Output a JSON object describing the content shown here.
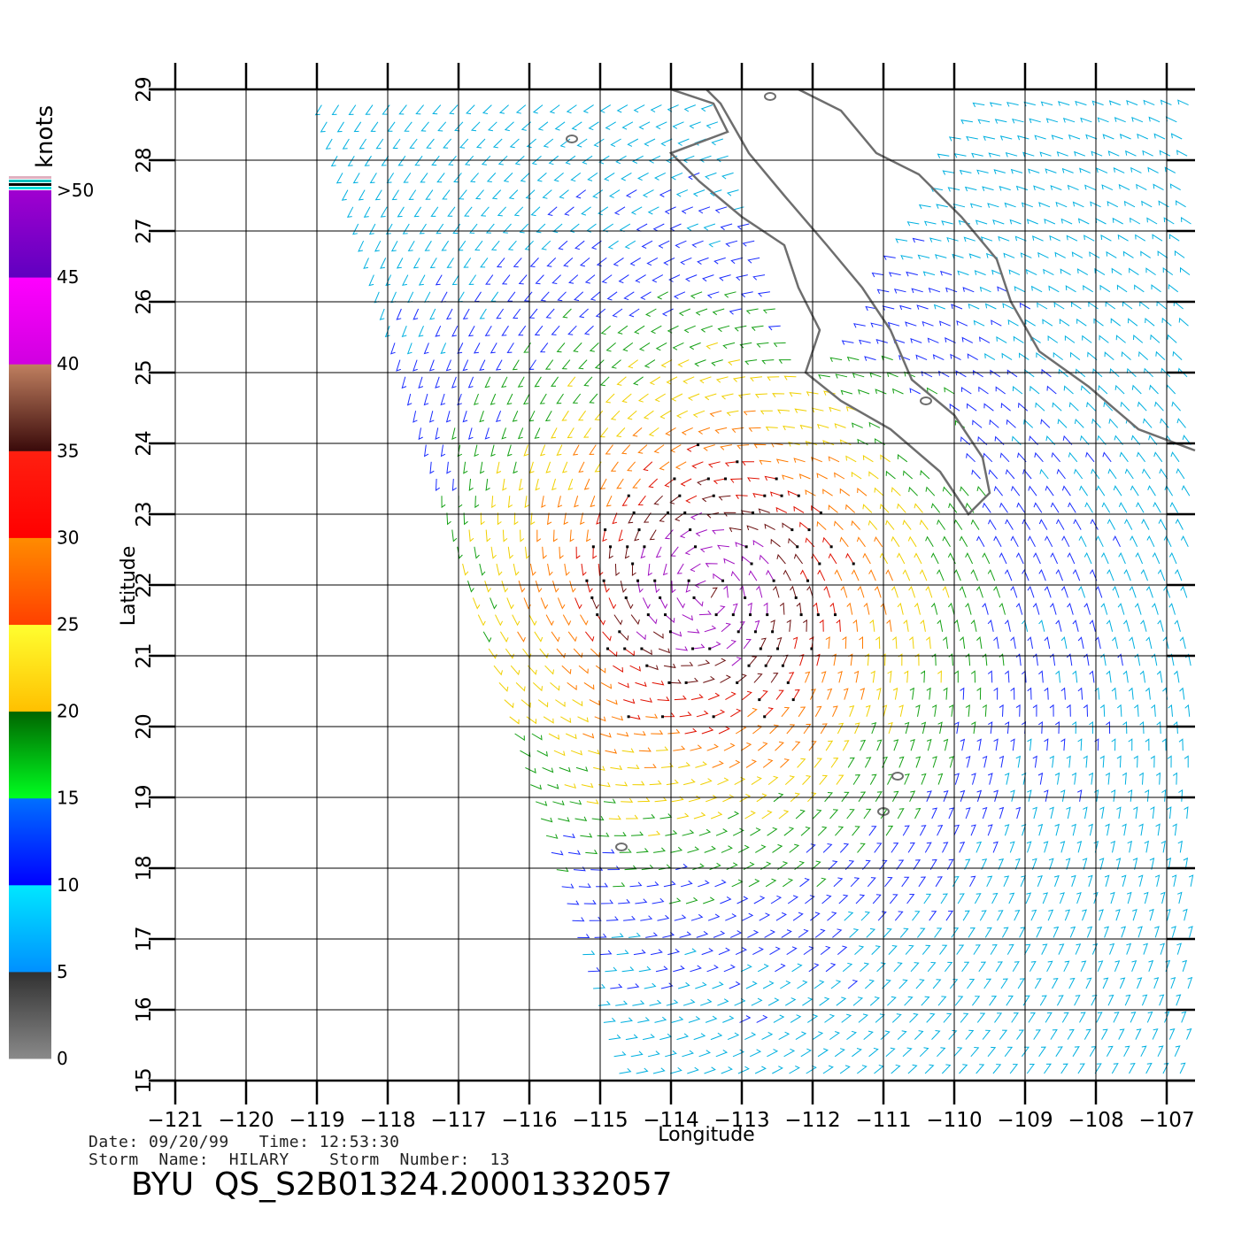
{
  "chart_data": {
    "type": "wind-barb map",
    "xlabel": "Longitude",
    "ylabel": "Latitude",
    "xlim": [
      -121,
      -106.6
    ],
    "ylim": [
      15,
      29
    ],
    "x_ticks": [
      -121,
      -120,
      -119,
      -118,
      -117,
      -116,
      -115,
      -114,
      -113,
      -112,
      -111,
      -110,
      -109,
      -108,
      -107
    ],
    "y_ticks": [
      15,
      16,
      17,
      18,
      19,
      20,
      21,
      22,
      23,
      24,
      25,
      26,
      27,
      28,
      29
    ],
    "grid": true,
    "colorbar": {
      "title": "knots",
      "labels": [
        "0",
        "5",
        "10",
        "15",
        "20",
        "25",
        "30",
        "35",
        "40",
        "45",
        ">50"
      ],
      "bands": [
        {
          "from": 0,
          "to": 5,
          "top": "#303030",
          "bottom": "#8a8a8a"
        },
        {
          "from": 5,
          "to": 10,
          "top": "#00e8ff",
          "bottom": "#0090ff"
        },
        {
          "from": 10,
          "to": 15,
          "top": "#0070ff",
          "bottom": "#0000ff"
        },
        {
          "from": 15,
          "to": 20,
          "top": "#006400",
          "bottom": "#00ff20"
        },
        {
          "from": 20,
          "to": 25,
          "top": "#ffff30",
          "bottom": "#ffc000"
        },
        {
          "from": 25,
          "to": 30,
          "top": "#ff8c00",
          "bottom": "#ff4000"
        },
        {
          "from": 30,
          "to": 35,
          "top": "#ff2010",
          "bottom": "#ff0000"
        },
        {
          "from": 35,
          "to": 40,
          "top": "#c08060",
          "bottom": "#3a0a0a"
        },
        {
          "from": 40,
          "to": 45,
          "top": "#ff00ff",
          "bottom": "#d000e0"
        },
        {
          "from": 45,
          "to": 50,
          "top": "#a000d0",
          "bottom": "#6000c0"
        }
      ],
      "top_stripes": [
        "#e0b0c0",
        "#00c0c0",
        "#000000",
        "#00e0e0"
      ]
    },
    "storm_center": {
      "lon": -113.5,
      "lat": 21.9
    },
    "swath": {
      "west_edge": [
        [
          -119.1,
          29
        ],
        [
          -114.8,
          15
        ]
      ],
      "east_edge": [
        [
          -106.6,
          29
        ],
        [
          -106.6,
          15
        ]
      ]
    },
    "coastlines": [
      [
        [
          -114.0,
          29.0
        ],
        [
          -113.4,
          28.8
        ],
        [
          -113.2,
          28.4
        ],
        [
          -114.0,
          28.1
        ],
        [
          -113.6,
          27.7
        ],
        [
          -113.0,
          27.2
        ],
        [
          -112.4,
          26.8
        ],
        [
          -112.2,
          26.2
        ],
        [
          -111.9,
          25.6
        ],
        [
          -112.1,
          25.0
        ],
        [
          -111.6,
          24.6
        ],
        [
          -110.9,
          24.2
        ],
        [
          -110.2,
          23.6
        ],
        [
          -109.8,
          23.0
        ],
        [
          -109.5,
          23.3
        ],
        [
          -109.6,
          23.8
        ],
        [
          -110.0,
          24.4
        ],
        [
          -110.6,
          24.9
        ],
        [
          -110.9,
          25.6
        ],
        [
          -111.3,
          26.2
        ],
        [
          -111.8,
          26.8
        ],
        [
          -112.4,
          27.5
        ],
        [
          -112.9,
          28.1
        ],
        [
          -113.3,
          28.8
        ],
        [
          -113.5,
          29.0
        ]
      ],
      [
        [
          -112.2,
          29.0
        ],
        [
          -111.6,
          28.7
        ],
        [
          -111.1,
          28.1
        ],
        [
          -110.5,
          27.8
        ],
        [
          -109.9,
          27.2
        ],
        [
          -109.4,
          26.6
        ],
        [
          -109.2,
          26.0
        ],
        [
          -108.8,
          25.3
        ],
        [
          -108.1,
          24.8
        ],
        [
          -107.4,
          24.2
        ],
        [
          -106.6,
          23.9
        ]
      ]
    ],
    "islands": [
      {
        "lon": -115.4,
        "lat": 28.3
      },
      {
        "lon": -112.6,
        "lat": 28.9
      },
      {
        "lon": -110.4,
        "lat": 24.6
      },
      {
        "lon": -110.8,
        "lat": 19.3
      },
      {
        "lon": -111.0,
        "lat": 18.8
      },
      {
        "lon": -114.7,
        "lat": 18.3
      }
    ]
  },
  "footer": {
    "line1": "Date: 09/20/99   Time: 12:53:30",
    "line2": "Storm  Name:  HILARY    Storm  Number:  13",
    "id": "BYU  QS_S2B01324.20001332057"
  }
}
